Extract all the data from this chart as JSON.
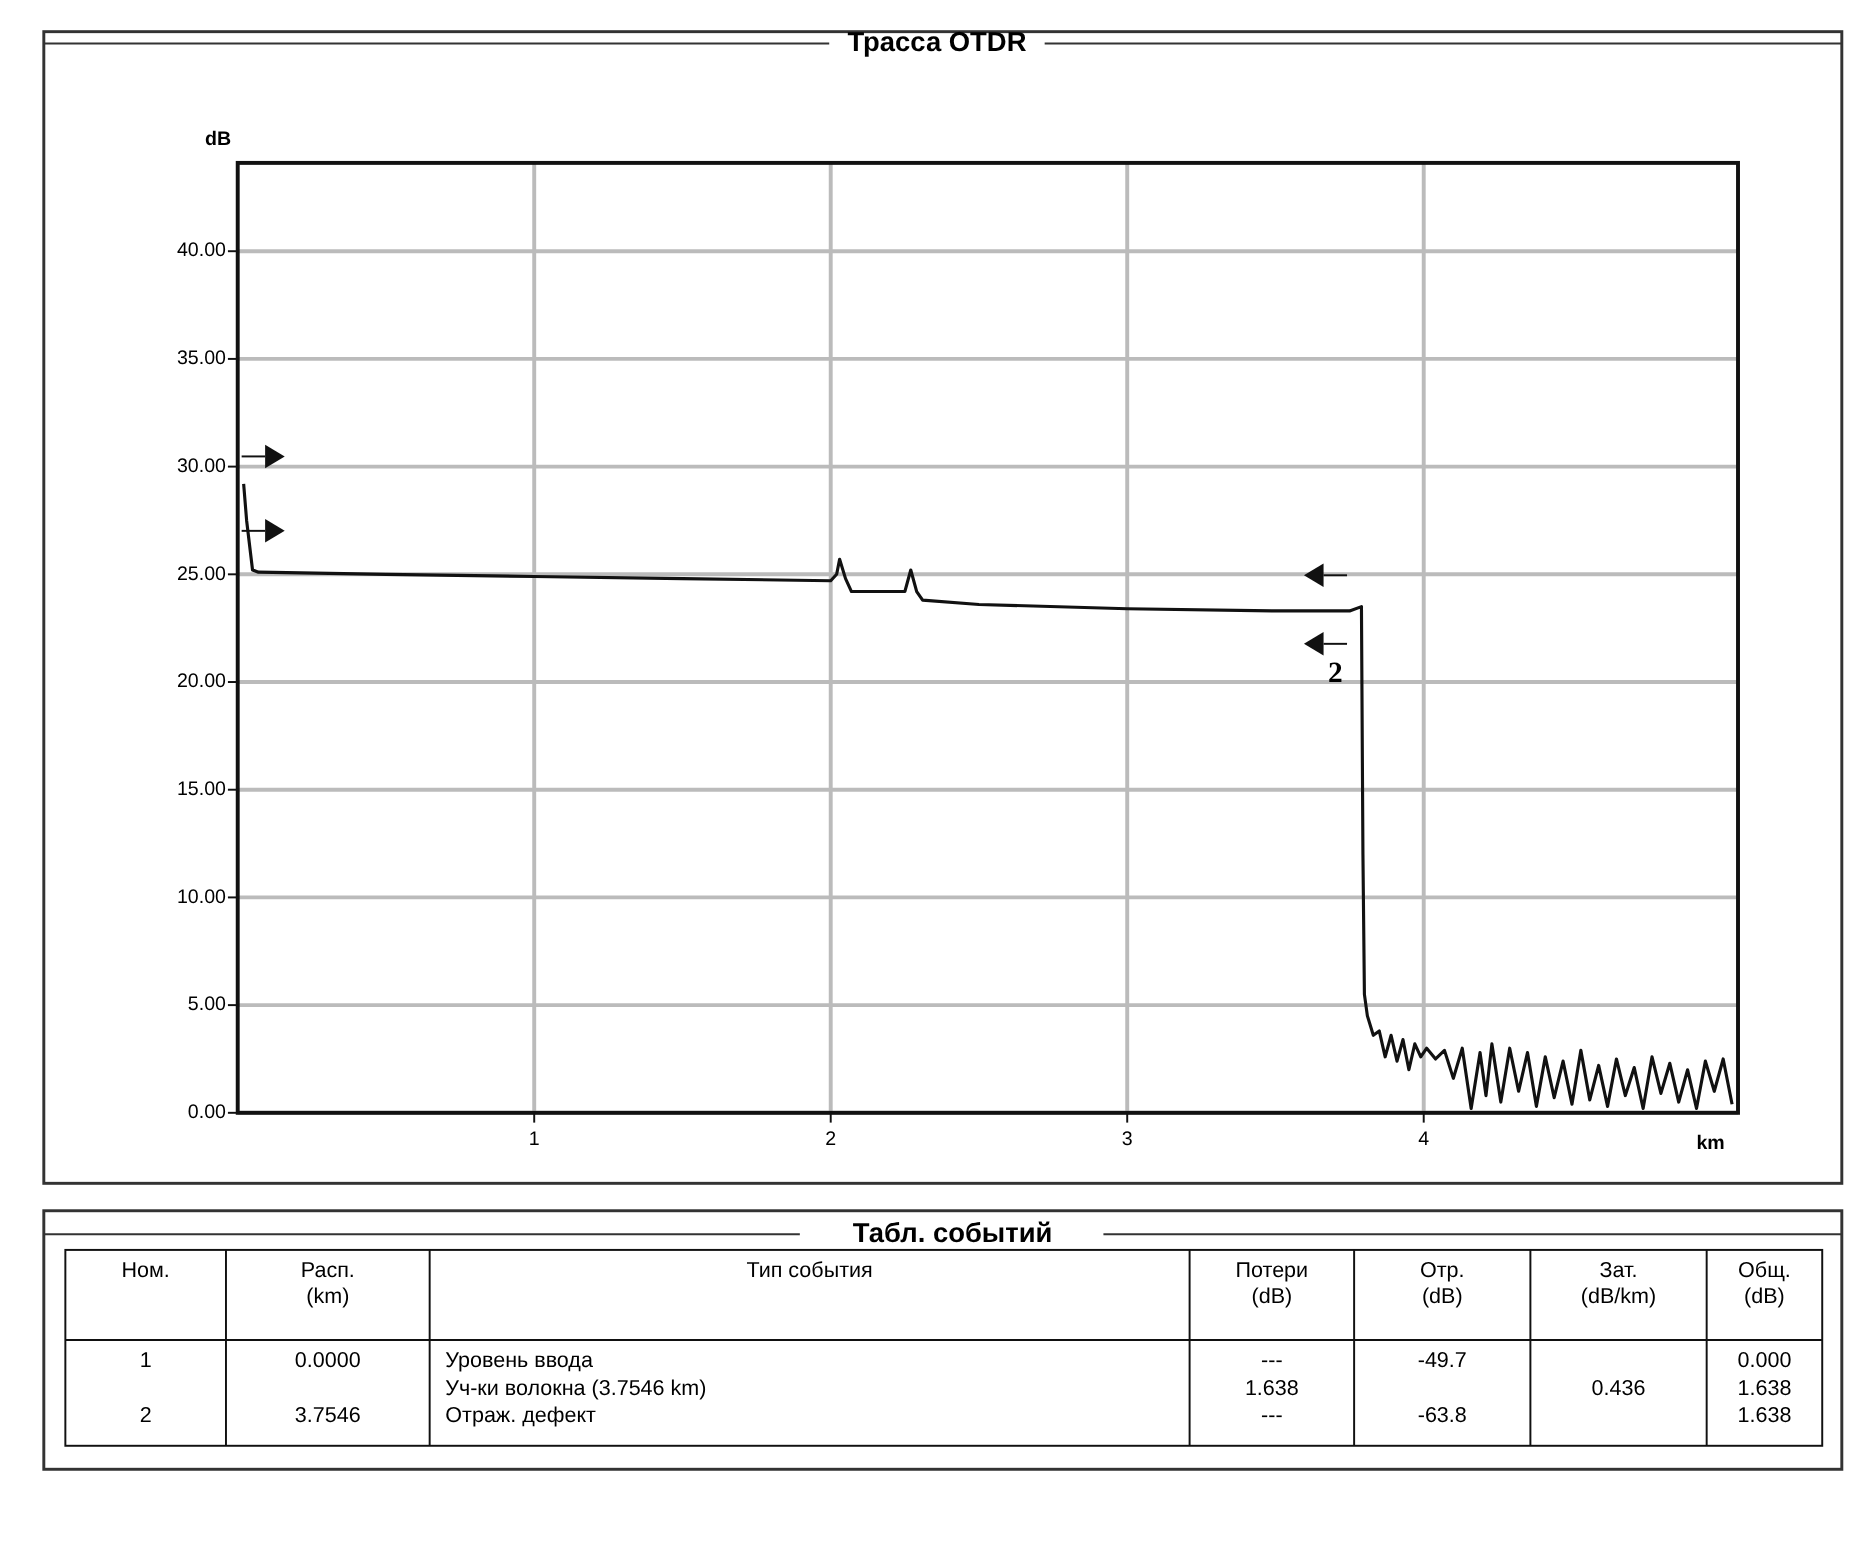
{
  "chart_data": [
    {
      "type": "line",
      "title": "Трасса OTDR",
      "xlabel": "km",
      "ylabel": "dB",
      "xlim": [
        0,
        5.06
      ],
      "ylim": [
        0,
        44.1
      ],
      "xticks": [
        1,
        2,
        3,
        4
      ],
      "yticks": [
        {
          "value": 0,
          "label": "0.00"
        },
        {
          "value": 5,
          "label": "5.00"
        },
        {
          "value": 10,
          "label": "10.00"
        },
        {
          "value": 15,
          "label": "15.00"
        },
        {
          "value": 20,
          "label": "20.00"
        },
        {
          "value": 25,
          "label": "25.00"
        },
        {
          "value": 30,
          "label": "30.00"
        },
        {
          "value": 35,
          "label": "35.00"
        },
        {
          "value": 40,
          "label": "40.00"
        }
      ],
      "grid": true,
      "line_style": "solid",
      "marker": "none",
      "annotations": [
        "2"
      ],
      "series": [
        {
          "color": "#111111",
          "x": [
            0.02,
            0.03,
            0.05,
            0.07,
            0.5,
            1.0,
            1.5,
            2.0,
            2.02,
            2.03,
            2.05,
            2.07,
            2.25,
            2.26,
            2.27,
            2.29,
            2.31,
            2.5,
            3.0,
            3.5,
            3.75,
            3.79,
            3.795,
            3.8,
            3.81,
            3.83,
            3.85,
            3.87,
            3.89,
            3.91,
            3.93,
            3.95,
            3.97,
            3.99,
            4.01,
            4.04,
            4.07,
            4.1,
            4.13,
            4.16,
            4.19,
            4.21,
            4.23,
            4.26,
            4.29,
            4.32,
            4.35,
            4.38,
            4.41,
            4.44,
            4.47,
            4.5,
            4.53,
            4.56,
            4.59,
            4.62,
            4.65,
            4.68,
            4.71,
            4.74,
            4.77,
            4.8,
            4.83,
            4.86,
            4.89,
            4.92,
            4.95,
            4.98,
            5.01,
            5.04
          ],
          "values": [
            29.2,
            27.5,
            25.2,
            25.1,
            25.0,
            24.9,
            24.8,
            24.7,
            25.0,
            25.7,
            24.8,
            24.2,
            24.2,
            24.7,
            25.2,
            24.2,
            23.8,
            23.6,
            23.4,
            23.3,
            23.3,
            23.5,
            12.0,
            5.5,
            4.5,
            3.6,
            3.8,
            2.6,
            3.6,
            2.4,
            3.4,
            2.0,
            3.2,
            2.6,
            3.0,
            2.5,
            2.9,
            1.6,
            3.0,
            0.2,
            2.8,
            0.8,
            3.2,
            0.5,
            3.0,
            1.0,
            2.8,
            0.3,
            2.6,
            0.7,
            2.4,
            0.4,
            2.9,
            0.6,
            2.2,
            0.3,
            2.5,
            0.8,
            2.1,
            0.2,
            2.6,
            0.9,
            2.3,
            0.5,
            2.0,
            0.2,
            2.4,
            1.0,
            2.5,
            0.4
          ]
        }
      ]
    },
    {
      "type": "other",
      "title": "Табл. событий",
      "categories": [
        "Ном.",
        "Расп.\n(km)",
        "Тип события",
        "Потери\n(dB)",
        "Отр.\n(dB)",
        "Зат.\n(dB/km)",
        "Общ.\n(dB)"
      ],
      "cell_labels": [
        [
          "1",
          "0.0000",
          "Уровень ввода",
          "---",
          "-49.7",
          null,
          "0.000"
        ],
        [
          null,
          null,
          "Уч-ки волокна (3.7546 km)",
          "1.638",
          null,
          "0.436",
          "1.638"
        ],
        [
          "2",
          "3.7546",
          "Отраж. дефект",
          "---",
          "-63.8",
          null,
          "1.638"
        ]
      ]
    }
  ]
}
